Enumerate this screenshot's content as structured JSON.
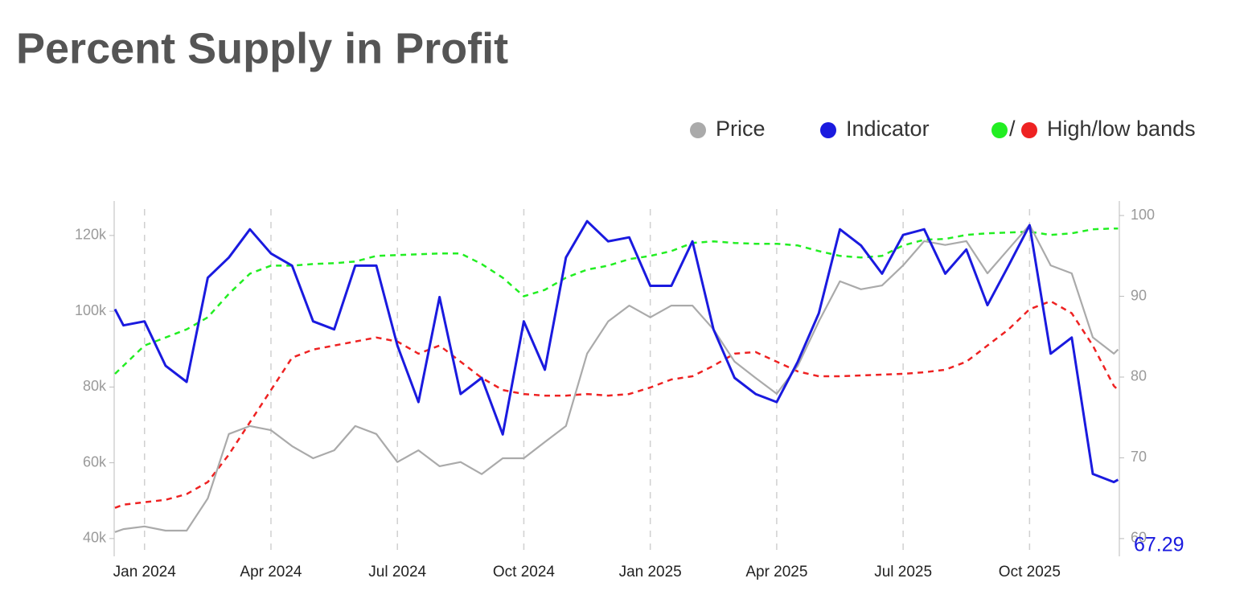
{
  "chart_data": {
    "type": "line",
    "title": "Percent Supply in Profit",
    "x": [
      -0.7,
      -0.5,
      0,
      0.5,
      1,
      1.5,
      2,
      2.5,
      3,
      3.5,
      4,
      4.5,
      5,
      5.5,
      6,
      6.5,
      7,
      7.5,
      8,
      8.5,
      9,
      9.5,
      10,
      10.5,
      11,
      11.5,
      12,
      12.5,
      13,
      13.5,
      14,
      14.5,
      15,
      15.5,
      16,
      16.5,
      17,
      17.5,
      18,
      18.5,
      19,
      19.5,
      20,
      20.5,
      21,
      21.5,
      22,
      22.5,
      23,
      23.1
    ],
    "xlim": [
      -0.72,
      23.13
    ],
    "xticks": [
      {
        "value": 0,
        "label": "Jan 2024"
      },
      {
        "value": 3,
        "label": "Apr 2024"
      },
      {
        "value": 6,
        "label": "Jul 2024"
      },
      {
        "value": 9,
        "label": "Oct 2024"
      },
      {
        "value": 12,
        "label": "Jan 2025"
      },
      {
        "value": 15,
        "label": "Apr 2025"
      },
      {
        "value": 18,
        "label": "Jul 2025"
      },
      {
        "value": 21,
        "label": "Oct 2025"
      }
    ],
    "ylim": [
      35300,
      129100
    ],
    "yticks": [
      {
        "value": 40000,
        "label": "40k"
      },
      {
        "value": 60000,
        "label": "60k"
      },
      {
        "value": 80000,
        "label": "80k"
      },
      {
        "value": 100000,
        "label": "100k"
      },
      {
        "value": 120000,
        "label": "120k"
      }
    ],
    "y2lim": [
      57.8,
      101.8
    ],
    "y2ticks": [
      60,
      70,
      80,
      90,
      100
    ],
    "x_grid": true,
    "series": [
      {
        "name": "Price",
        "color": "#aaaaaa",
        "axis": "y",
        "values": [
          41700,
          42500,
          43200,
          42100,
          42100,
          50600,
          67600,
          69700,
          68600,
          64400,
          61200,
          63300,
          69700,
          67600,
          60200,
          63300,
          59100,
          60200,
          57000,
          61200,
          61200,
          65500,
          69700,
          88800,
          97300,
          101500,
          98400,
          101500,
          101500,
          95200,
          86700,
          82400,
          78200,
          85600,
          97300,
          107900,
          105800,
          106800,
          112100,
          118500,
          117500,
          118500,
          110000,
          116400,
          122800,
          112100,
          110000,
          93100,
          88800,
          89900
        ]
      },
      {
        "name": "Indicator",
        "color": "#1a1adf",
        "axis": "y2",
        "values": [
          88.4,
          86.4,
          86.9,
          81.4,
          79.4,
          92.3,
          94.8,
          98.3,
          95.3,
          93.8,
          86.9,
          85.9,
          93.8,
          93.8,
          83.9,
          76.9,
          89.9,
          77.9,
          79.9,
          72.9,
          86.9,
          80.9,
          94.8,
          99.3,
          96.8,
          97.3,
          91.3,
          91.3,
          96.8,
          85.9,
          79.9,
          77.9,
          76.9,
          81.9,
          87.9,
          98.3,
          96.3,
          92.8,
          97.6,
          98.3,
          92.8,
          95.8,
          88.9,
          93.8,
          98.8,
          82.9,
          84.9,
          68.0,
          67.0,
          67.29
        ]
      }
    ],
    "bands": {
      "name": "High/low bands",
      "separator": "/",
      "axis": "y2",
      "dashed": true,
      "high": {
        "color": "#22ee22",
        "values": [
          80.4,
          81.4,
          83.9,
          84.9,
          85.9,
          87.4,
          90.3,
          92.8,
          93.8,
          93.8,
          94.0,
          94.1,
          94.3,
          95.0,
          95.1,
          95.2,
          95.3,
          95.3,
          94.0,
          92.3,
          90.0,
          90.8,
          92.3,
          93.3,
          93.8,
          94.6,
          95.0,
          95.6,
          96.6,
          96.8,
          96.6,
          96.5,
          96.5,
          96.3,
          95.6,
          95.0,
          94.8,
          95.0,
          96.3,
          97.0,
          97.1,
          97.6,
          97.8,
          97.9,
          98.0,
          97.6,
          97.8,
          98.3,
          98.4,
          98.4
        ]
      },
      "low": {
        "color": "#ee2222",
        "values": [
          63.8,
          64.2,
          64.5,
          64.8,
          65.5,
          67.0,
          70.4,
          74.4,
          78.4,
          82.4,
          83.4,
          83.9,
          84.4,
          84.9,
          84.4,
          82.9,
          83.9,
          81.9,
          79.9,
          78.4,
          77.9,
          77.7,
          77.7,
          77.9,
          77.7,
          77.9,
          78.7,
          79.7,
          80.1,
          81.4,
          82.9,
          83.1,
          81.9,
          80.7,
          80.1,
          80.1,
          80.2,
          80.3,
          80.4,
          80.6,
          80.9,
          81.9,
          83.9,
          85.9,
          88.4,
          89.4,
          87.9,
          83.9,
          78.9,
          78.4
        ]
      }
    },
    "last_value_label": "67.29",
    "last_value_color": "#1a1adf"
  }
}
